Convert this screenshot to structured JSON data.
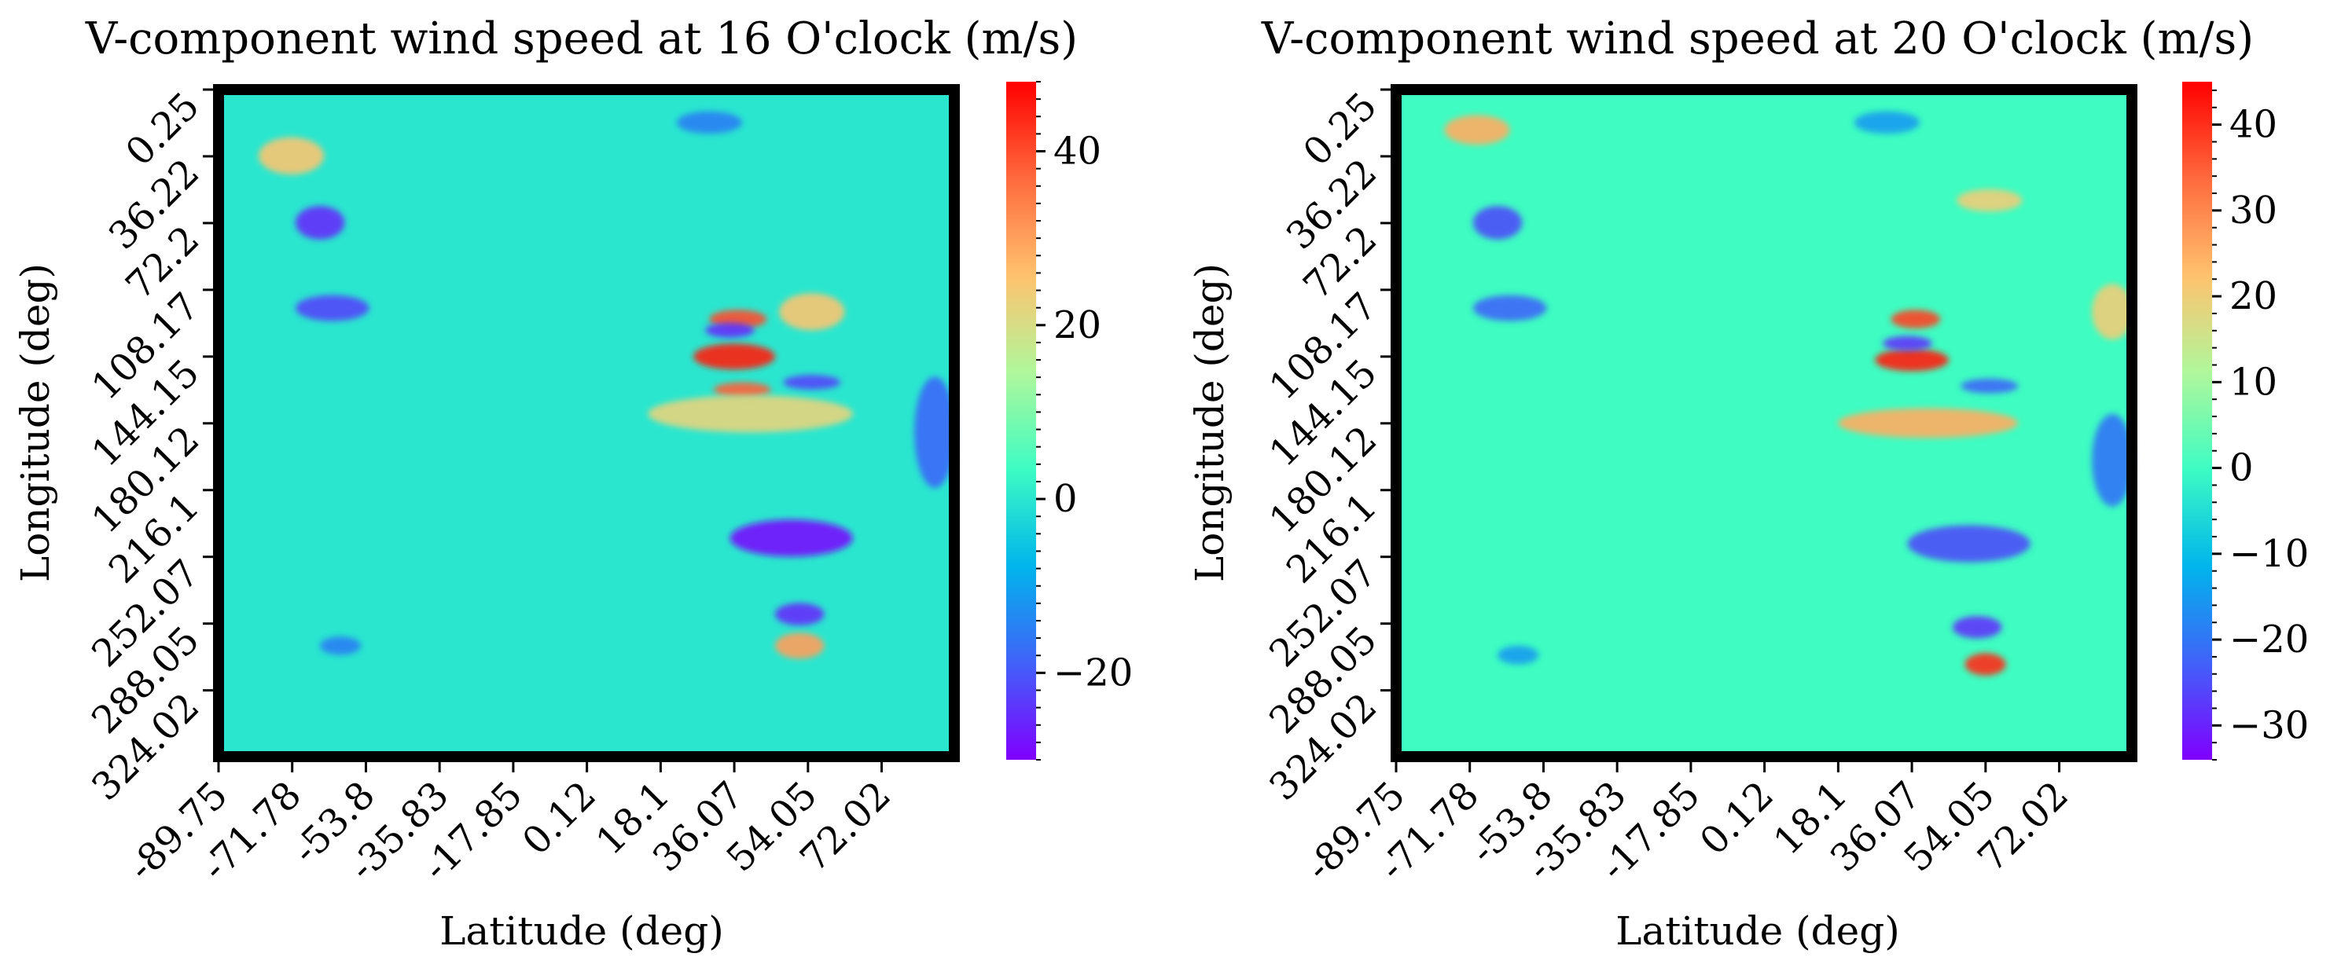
{
  "colors": {
    "background_mid": "#5ee3b8",
    "frame": "#000000",
    "colormap": [
      "#8000ff",
      "#4162f9",
      "#00b5eb",
      "#3dfcc3",
      "#b0f79b",
      "#ffc26e",
      "#ff6a3d",
      "#ff0000"
    ]
  },
  "chart_data": [
    {
      "type": "heatmap",
      "title": "V-component wind speed at 16 O'clock (m/s)",
      "xlabel": "Latitude (deg)",
      "ylabel": "Longitude (deg)",
      "x_ticks": [
        "-89.75",
        "-71.78",
        "-53.8",
        "-35.83",
        "-17.85",
        "0.12",
        "18.1",
        "36.07",
        "54.05",
        "72.02"
      ],
      "y_ticks": [
        "0.25",
        "36.22",
        "72.2",
        "108.17",
        "144.15",
        "180.12",
        "216.1",
        "252.07",
        "288.05",
        "324.02"
      ],
      "colorbar": {
        "min": -30,
        "max": 48,
        "ticks": [
          40,
          20,
          0,
          -20
        ],
        "tick_labels": [
          "40",
          "20",
          "0",
          "−20"
        ]
      },
      "features": [
        {
          "x": 36.07,
          "y": 144.15,
          "value": 45,
          "sx": 10,
          "sy": 7
        },
        {
          "x": 38,
          "y": 162,
          "value": 38,
          "sx": 7,
          "sy": 4
        },
        {
          "x": 37,
          "y": 124,
          "value": 40,
          "sx": 7,
          "sy": 5
        },
        {
          "x": 52,
          "y": 300,
          "value": 30,
          "sx": 6,
          "sy": 7
        },
        {
          "x": -72,
          "y": 36,
          "value": 25,
          "sx": 8,
          "sy": 10
        },
        {
          "x": 55,
          "y": 120,
          "value": 25,
          "sx": 8,
          "sy": 10
        },
        {
          "x": 40,
          "y": 175,
          "value": 22,
          "sx": 25,
          "sy": 10
        },
        {
          "x": -65,
          "y": 72,
          "value": -25,
          "sx": 6,
          "sy": 9
        },
        {
          "x": -62,
          "y": 118,
          "value": -22,
          "sx": 9,
          "sy": 7
        },
        {
          "x": 35,
          "y": 130,
          "value": -25,
          "sx": 6,
          "sy": 4
        },
        {
          "x": 55,
          "y": 158,
          "value": -22,
          "sx": 7,
          "sy": 4
        },
        {
          "x": 50,
          "y": 242,
          "value": -28,
          "sx": 15,
          "sy": 10
        },
        {
          "x": 52,
          "y": 283,
          "value": -25,
          "sx": 6,
          "sy": 6
        },
        {
          "x": -60,
          "y": 300,
          "value": -15,
          "sx": 5,
          "sy": 5
        },
        {
          "x": 85,
          "y": 185,
          "value": -18,
          "sx": 5,
          "sy": 30
        },
        {
          "x": 30,
          "y": 18,
          "value": -15,
          "sx": 8,
          "sy": 6
        }
      ]
    },
    {
      "type": "heatmap",
      "title": "V-component wind speed at 20 O'clock (m/s)",
      "xlabel": "Latitude (deg)",
      "ylabel": "Longitude (deg)",
      "x_ticks": [
        "-89.75",
        "-71.78",
        "-53.8",
        "-35.83",
        "-17.85",
        "0.12",
        "18.1",
        "36.07",
        "54.05",
        "72.02"
      ],
      "y_ticks": [
        "0.25",
        "36.22",
        "72.2",
        "108.17",
        "144.15",
        "180.12",
        "216.1",
        "252.07",
        "288.05",
        "324.02"
      ],
      "colorbar": {
        "min": -34,
        "max": 45,
        "ticks": [
          40,
          30,
          20,
          10,
          0,
          -10,
          -20,
          -30
        ],
        "tick_labels": [
          "40",
          "30",
          "20",
          "10",
          "0",
          "−10",
          "−20",
          "−30"
        ]
      },
      "features": [
        {
          "x": 36.07,
          "y": 146,
          "value": 42,
          "sx": 9,
          "sy": 6
        },
        {
          "x": 37,
          "y": 124,
          "value": 38,
          "sx": 6,
          "sy": 5
        },
        {
          "x": 54,
          "y": 310,
          "value": 40,
          "sx": 5,
          "sy": 6
        },
        {
          "x": -70,
          "y": 22,
          "value": 25,
          "sx": 8,
          "sy": 8
        },
        {
          "x": 40,
          "y": 180,
          "value": 25,
          "sx": 22,
          "sy": 8
        },
        {
          "x": 55,
          "y": 60,
          "value": 20,
          "sx": 8,
          "sy": 6
        },
        {
          "x": 85,
          "y": 120,
          "value": 20,
          "sx": 5,
          "sy": 15
        },
        {
          "x": -65,
          "y": 72,
          "value": -25,
          "sx": 6,
          "sy": 9
        },
        {
          "x": -62,
          "y": 118,
          "value": -22,
          "sx": 9,
          "sy": 7
        },
        {
          "x": 35,
          "y": 137,
          "value": -28,
          "sx": 6,
          "sy": 4
        },
        {
          "x": 55,
          "y": 160,
          "value": -22,
          "sx": 7,
          "sy": 4
        },
        {
          "x": 50,
          "y": 245,
          "value": -25,
          "sx": 15,
          "sy": 10
        },
        {
          "x": 52,
          "y": 290,
          "value": -28,
          "sx": 6,
          "sy": 6
        },
        {
          "x": -60,
          "y": 305,
          "value": -15,
          "sx": 5,
          "sy": 5
        },
        {
          "x": 85,
          "y": 200,
          "value": -20,
          "sx": 5,
          "sy": 25
        },
        {
          "x": 30,
          "y": 18,
          "value": -15,
          "sx": 8,
          "sy": 6
        }
      ]
    }
  ]
}
